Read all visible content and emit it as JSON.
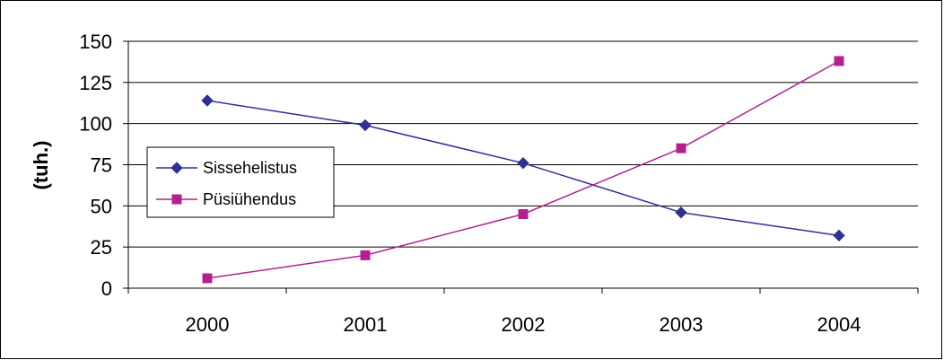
{
  "chart_data": {
    "type": "line",
    "title": "",
    "xlabel": "",
    "ylabel": "(tuh.)",
    "categories": [
      "2000",
      "2001",
      "2002",
      "2003",
      "2004"
    ],
    "ylim": [
      0,
      150
    ],
    "yticks": [
      0,
      25,
      50,
      75,
      100,
      125,
      150
    ],
    "grid": "horizontal",
    "legend_position": "left",
    "series": [
      {
        "name": "Sissehelistus",
        "values": [
          114,
          99,
          76,
          46,
          32
        ],
        "color": "#2E3192",
        "marker": "diamond"
      },
      {
        "name": "Püsiühendus",
        "values": [
          6,
          20,
          45,
          85,
          138
        ],
        "color": "#B3208F",
        "marker": "square"
      }
    ]
  }
}
